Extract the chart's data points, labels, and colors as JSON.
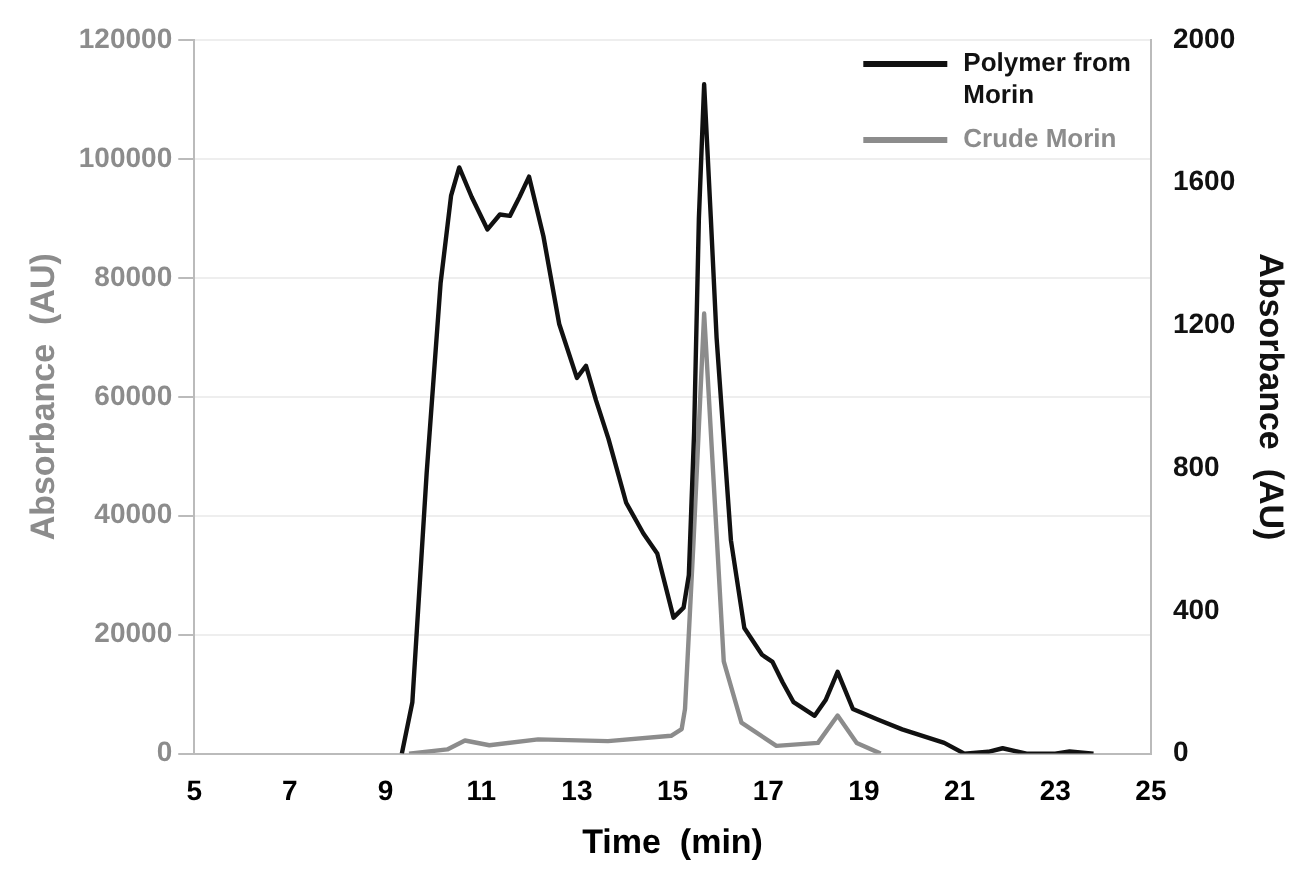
{
  "chart_data": {
    "type": "line",
    "xlabel": "Time  (min)",
    "ylabel": "Absorbance  (AU)",
    "y2label": "Absorbance  (AU)",
    "xlim": [
      5,
      25
    ],
    "xticks": [
      5,
      7,
      9,
      11,
      13,
      15,
      17,
      19,
      21,
      23,
      25
    ],
    "ylim": [
      0,
      120000
    ],
    "yticks": [
      0,
      20000,
      40000,
      60000,
      80000,
      100000,
      120000
    ],
    "y2lim": [
      0,
      2000
    ],
    "y2ticks": [
      0,
      400,
      800,
      1200,
      1600,
      2000
    ],
    "grid": "y",
    "legend": "top right",
    "marker": "none",
    "line_style": "solid",
    "series": [
      {
        "name": "Polymer from Morin",
        "color": "#111111",
        "axis": "y2",
        "x": [
          9.34,
          9.56,
          9.86,
          10.15,
          10.37,
          10.54,
          10.8,
          11.13,
          11.39,
          11.6,
          11.8,
          12.0,
          12.3,
          12.63,
          13.0,
          13.19,
          13.4,
          13.66,
          14.03,
          14.39,
          14.68,
          15.02,
          15.23,
          15.34,
          15.45,
          15.55,
          15.66,
          15.8,
          15.92,
          16.22,
          16.5,
          16.87,
          17.09,
          17.3,
          17.53,
          17.97,
          18.2,
          18.45,
          18.77,
          19.3,
          19.8,
          20.68,
          21.1,
          21.6,
          21.9,
          22.4,
          23.0,
          23.3,
          23.8
        ],
        "values": [
          0,
          144,
          788,
          1318,
          1564,
          1643,
          1560,
          1469,
          1511,
          1507,
          1560,
          1617,
          1450,
          1204,
          1053,
          1087,
          990,
          882,
          703,
          617,
          561,
          381,
          409,
          500,
          900,
          1500,
          1876,
          1500,
          1166,
          598,
          352,
          277,
          257,
          200,
          144,
          106,
          150,
          229,
          125,
          95,
          68,
          30,
          0,
          5,
          15,
          0,
          0,
          6,
          0
        ]
      },
      {
        "name": "Crude Morin",
        "color": "#8c8c8c",
        "axis": "y",
        "x": [
          9.49,
          10.29,
          10.66,
          11.17,
          12.19,
          13.65,
          14.97,
          15.19,
          15.26,
          15.44,
          15.66,
          15.85,
          16.07,
          16.44,
          17.17,
          18.04,
          18.45,
          18.85,
          19.35
        ],
        "values": [
          0,
          700,
          2200,
          1400,
          2400,
          2100,
          3000,
          4100,
          7500,
          36000,
          74000,
          47000,
          15500,
          5200,
          1300,
          1800,
          6400,
          1800,
          0
        ]
      }
    ]
  }
}
